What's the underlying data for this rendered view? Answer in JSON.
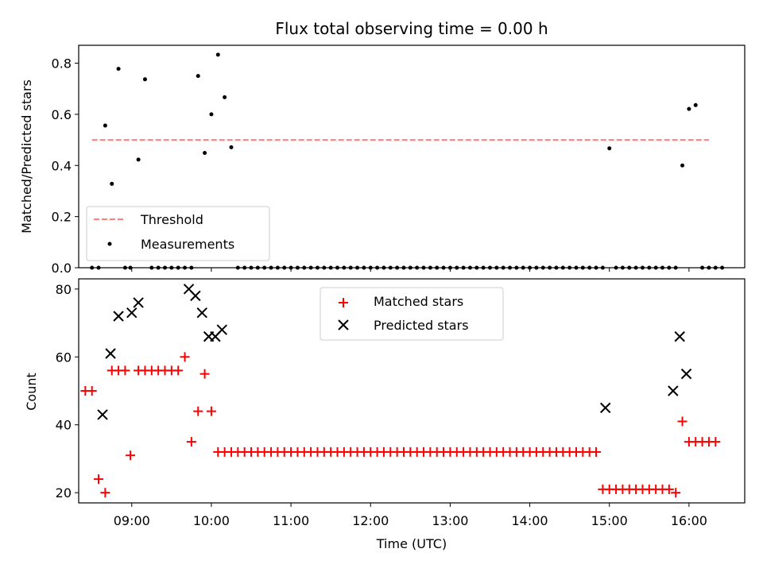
{
  "chart_data": [
    {
      "type": "scatter",
      "title": "Flux total observing time = 0.00 h",
      "xlabel": "",
      "ylabel": "Matched/Predicted stars",
      "ylim": [
        0,
        0.87
      ],
      "yticks": [
        "0.0",
        "0.2",
        "0.4",
        "0.6",
        "0.8"
      ],
      "legend_position": "lower-left",
      "threshold": {
        "name": "Threshold",
        "y": 0.5,
        "x_range": [
          "08:30",
          "16:15"
        ],
        "color": "#ff7f7f"
      },
      "series": [
        {
          "name": "Measurements",
          "color": "#000000",
          "points": [
            [
              "08:30",
              0
            ],
            [
              "08:35",
              0
            ],
            [
              "08:40",
              0.556
            ],
            [
              "08:45",
              0.328
            ],
            [
              "08:50",
              0.778
            ],
            [
              "08:55",
              0
            ],
            [
              "08:59",
              0
            ],
            [
              "09:05",
              0.423
            ],
            [
              "09:10",
              0.737
            ],
            [
              "09:15",
              0
            ],
            [
              "09:20",
              0
            ],
            [
              "09:25",
              0
            ],
            [
              "09:30",
              0
            ],
            [
              "09:35",
              0
            ],
            [
              "09:40",
              0
            ],
            [
              "09:45",
              0
            ],
            [
              "09:50",
              0.75
            ],
            [
              "09:55",
              0.449
            ],
            [
              "10:00",
              0.6
            ],
            [
              "10:05",
              0.833
            ],
            [
              "10:10",
              0.667
            ],
            [
              "10:15",
              0.471
            ],
            [
              "10:20",
              0
            ],
            [
              "10:25",
              0
            ],
            [
              "10:30",
              0
            ],
            [
              "10:35",
              0
            ],
            [
              "10:40",
              0
            ],
            [
              "10:45",
              0
            ],
            [
              "10:50",
              0
            ],
            [
              "10:55",
              0
            ],
            [
              "11:00",
              0
            ],
            [
              "11:05",
              0
            ],
            [
              "11:10",
              0
            ],
            [
              "11:15",
              0
            ],
            [
              "11:20",
              0
            ],
            [
              "11:25",
              0
            ],
            [
              "11:30",
              0
            ],
            [
              "11:35",
              0
            ],
            [
              "11:40",
              0
            ],
            [
              "11:45",
              0
            ],
            [
              "11:50",
              0
            ],
            [
              "11:55",
              0
            ],
            [
              "12:00",
              0
            ],
            [
              "12:05",
              0
            ],
            [
              "12:10",
              0
            ],
            [
              "12:15",
              0
            ],
            [
              "12:20",
              0
            ],
            [
              "12:25",
              0
            ],
            [
              "12:30",
              0
            ],
            [
              "12:35",
              0
            ],
            [
              "12:40",
              0
            ],
            [
              "12:45",
              0
            ],
            [
              "12:50",
              0
            ],
            [
              "12:55",
              0
            ],
            [
              "13:00",
              0
            ],
            [
              "13:05",
              0
            ],
            [
              "13:10",
              0
            ],
            [
              "13:15",
              0
            ],
            [
              "13:20",
              0
            ],
            [
              "13:25",
              0
            ],
            [
              "13:30",
              0
            ],
            [
              "13:35",
              0
            ],
            [
              "13:40",
              0
            ],
            [
              "13:45",
              0
            ],
            [
              "13:50",
              0
            ],
            [
              "13:55",
              0
            ],
            [
              "14:00",
              0
            ],
            [
              "14:05",
              0
            ],
            [
              "14:10",
              0
            ],
            [
              "14:15",
              0
            ],
            [
              "14:20",
              0
            ],
            [
              "14:25",
              0
            ],
            [
              "14:30",
              0
            ],
            [
              "14:35",
              0
            ],
            [
              "14:40",
              0
            ],
            [
              "14:45",
              0
            ],
            [
              "14:50",
              0
            ],
            [
              "14:55",
              0
            ],
            [
              "15:00",
              0.467
            ],
            [
              "15:05",
              0
            ],
            [
              "15:10",
              0
            ],
            [
              "15:15",
              0
            ],
            [
              "15:20",
              0
            ],
            [
              "15:25",
              0
            ],
            [
              "15:30",
              0
            ],
            [
              "15:35",
              0
            ],
            [
              "15:40",
              0
            ],
            [
              "15:45",
              0
            ],
            [
              "15:50",
              0
            ],
            [
              "15:55",
              0.4
            ],
            [
              "16:00",
              0.621
            ],
            [
              "16:05",
              0.636
            ],
            [
              "16:10",
              0
            ],
            [
              "16:15",
              0
            ],
            [
              "16:20",
              0
            ],
            [
              "16:25",
              0
            ]
          ]
        }
      ]
    },
    {
      "type": "scatter",
      "title": "",
      "xlabel": "Time (UTC)",
      "ylabel": "Count",
      "ylim": [
        17,
        83
      ],
      "yticks": [
        "20",
        "40",
        "60",
        "80"
      ],
      "xticks": [
        "09:00",
        "10:00",
        "11:00",
        "12:00",
        "13:00",
        "14:00",
        "15:00",
        "16:00"
      ],
      "xlim": [
        "08:20",
        "16:42"
      ],
      "legend_position": "upper-center",
      "series": [
        {
          "name": "Matched stars",
          "marker": "+",
          "color": "#ff0000",
          "points": [
            [
              "08:25",
              50
            ],
            [
              "08:30",
              50
            ],
            [
              "08:35",
              24
            ],
            [
              "08:40",
              20
            ],
            [
              "08:45",
              56
            ],
            [
              "08:50",
              56
            ],
            [
              "08:55",
              56
            ],
            [
              "08:59",
              31
            ],
            [
              "09:05",
              56
            ],
            [
              "09:10",
              56
            ],
            [
              "09:15",
              56
            ],
            [
              "09:20",
              56
            ],
            [
              "09:25",
              56
            ],
            [
              "09:30",
              56
            ],
            [
              "09:35",
              56
            ],
            [
              "09:40",
              60
            ],
            [
              "09:45",
              35
            ],
            [
              "09:50",
              44
            ],
            [
              "09:55",
              55
            ],
            [
              "10:00",
              44
            ],
            [
              "10:05",
              32
            ],
            [
              "10:10",
              32
            ],
            [
              "10:15",
              32
            ],
            [
              "10:20",
              32
            ],
            [
              "10:25",
              32
            ],
            [
              "10:30",
              32
            ],
            [
              "10:35",
              32
            ],
            [
              "10:40",
              32
            ],
            [
              "10:45",
              32
            ],
            [
              "10:50",
              32
            ],
            [
              "10:55",
              32
            ],
            [
              "11:00",
              32
            ],
            [
              "11:05",
              32
            ],
            [
              "11:10",
              32
            ],
            [
              "11:15",
              32
            ],
            [
              "11:20",
              32
            ],
            [
              "11:25",
              32
            ],
            [
              "11:30",
              32
            ],
            [
              "11:35",
              32
            ],
            [
              "11:40",
              32
            ],
            [
              "11:45",
              32
            ],
            [
              "11:50",
              32
            ],
            [
              "11:55",
              32
            ],
            [
              "12:00",
              32
            ],
            [
              "12:05",
              32
            ],
            [
              "12:10",
              32
            ],
            [
              "12:15",
              32
            ],
            [
              "12:20",
              32
            ],
            [
              "12:25",
              32
            ],
            [
              "12:30",
              32
            ],
            [
              "12:35",
              32
            ],
            [
              "12:40",
              32
            ],
            [
              "12:45",
              32
            ],
            [
              "12:50",
              32
            ],
            [
              "12:55",
              32
            ],
            [
              "13:00",
              32
            ],
            [
              "13:05",
              32
            ],
            [
              "13:10",
              32
            ],
            [
              "13:15",
              32
            ],
            [
              "13:20",
              32
            ],
            [
              "13:25",
              32
            ],
            [
              "13:30",
              32
            ],
            [
              "13:35",
              32
            ],
            [
              "13:40",
              32
            ],
            [
              "13:45",
              32
            ],
            [
              "13:50",
              32
            ],
            [
              "13:55",
              32
            ],
            [
              "14:00",
              32
            ],
            [
              "14:05",
              32
            ],
            [
              "14:10",
              32
            ],
            [
              "14:15",
              32
            ],
            [
              "14:20",
              32
            ],
            [
              "14:25",
              32
            ],
            [
              "14:30",
              32
            ],
            [
              "14:35",
              32
            ],
            [
              "14:40",
              32
            ],
            [
              "14:45",
              32
            ],
            [
              "14:50",
              32
            ],
            [
              "14:55",
              21
            ],
            [
              "15:00",
              21
            ],
            [
              "15:05",
              21
            ],
            [
              "15:10",
              21
            ],
            [
              "15:15",
              21
            ],
            [
              "15:20",
              21
            ],
            [
              "15:25",
              21
            ],
            [
              "15:30",
              21
            ],
            [
              "15:35",
              21
            ],
            [
              "15:40",
              21
            ],
            [
              "15:45",
              21
            ],
            [
              "15:50",
              20
            ],
            [
              "15:55",
              41
            ],
            [
              "16:00",
              35
            ],
            [
              "16:05",
              35
            ],
            [
              "16:10",
              35
            ],
            [
              "16:15",
              35
            ],
            [
              "16:20",
              35
            ]
          ]
        },
        {
          "name": "Predicted stars",
          "marker": "x",
          "color": "#000000",
          "points": [
            [
              "08:38",
              43
            ],
            [
              "08:44",
              61
            ],
            [
              "08:50",
              72
            ],
            [
              "09:00",
              73
            ],
            [
              "09:05",
              76
            ],
            [
              "09:43",
              80
            ],
            [
              "09:48",
              78
            ],
            [
              "09:53",
              73
            ],
            [
              "09:58",
              66
            ],
            [
              "10:03",
              66
            ],
            [
              "10:08",
              68
            ],
            [
              "14:57",
              45
            ],
            [
              "15:48",
              50
            ],
            [
              "15:53",
              66
            ],
            [
              "15:58",
              55
            ]
          ]
        }
      ]
    }
  ]
}
